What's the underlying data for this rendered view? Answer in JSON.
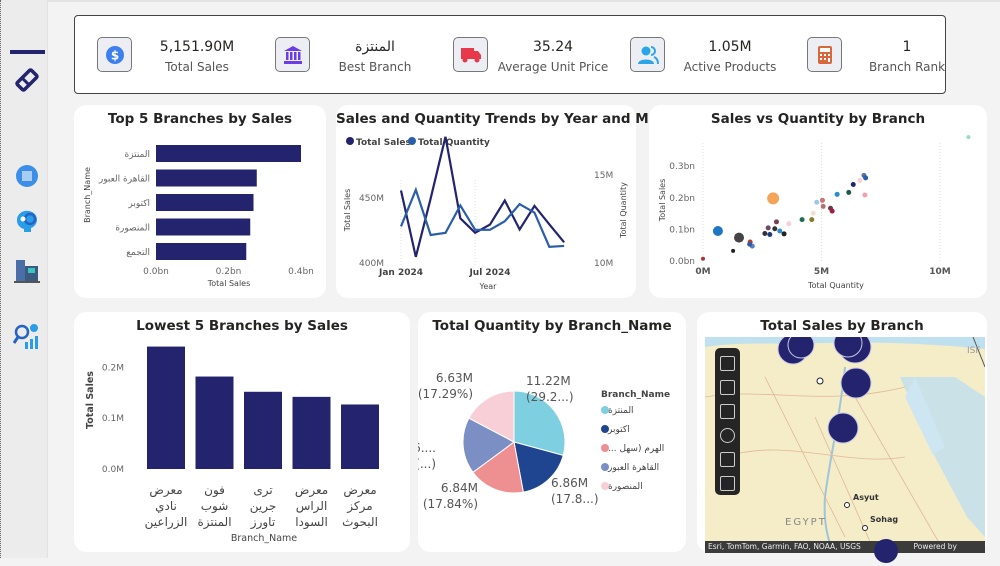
{
  "sidebar": {
    "items": [
      {
        "icon": "eraser-icon"
      },
      {
        "icon": "globe-building-icon"
      },
      {
        "icon": "head-gear-icon"
      },
      {
        "icon": "buildings-icon"
      },
      {
        "icon": "analytics-search-icon"
      }
    ]
  },
  "kpis": [
    {
      "value": "5,151.90M",
      "label": "Total Sales",
      "icon": "dollar-icon",
      "color": "#3d7ff0"
    },
    {
      "value": "المنتزة",
      "label": "Best Branch",
      "icon": "bank-icon",
      "color": "#6a3de8"
    },
    {
      "value": "35.24",
      "label": "Average Unit Price",
      "icon": "truck-icon",
      "color": "#e8394a"
    },
    {
      "value": "1.05M",
      "label": "Active Products",
      "icon": "users-icon",
      "color": "#2aa6e8"
    },
    {
      "value": "1",
      "label": "Branch Rank",
      "icon": "calculator-icon",
      "color": "#d9673c"
    }
  ],
  "chart_data": [
    {
      "id": "top5",
      "type": "bar",
      "orientation": "horizontal",
      "title": "Top 5 Branches by Sales",
      "categories": [
        "المنتزة",
        "القاهرة العبور",
        "اكتوبر",
        "المنصورة",
        "التجمع"
      ],
      "values": [
        0.4,
        0.278,
        0.269,
        0.26,
        0.249
      ],
      "xlabel": "Total Sales",
      "ylabel": "Branch_Name",
      "xlim": [
        0,
        0.4
      ],
      "xticks": [
        "0.0bn",
        "0.2bn",
        "0.4bn"
      ],
      "color": "#23246d"
    },
    {
      "id": "trend",
      "type": "line",
      "title": "Sales and Quantity Trends by Year and Month",
      "x": [
        "2024-01",
        "2024-02",
        "2024-03",
        "2024-04",
        "2024-05",
        "2024-06",
        "2024-07",
        "2024-08",
        "2024-09",
        "2024-10",
        "2024-11",
        "2024-12"
      ],
      "xticks": [
        "Jan 2024",
        "Jul 2024"
      ],
      "xlabel": "Year",
      "ylabel": "Total Sales",
      "y2label": "Total Quantity",
      "yticks": [
        "400M",
        "450M"
      ],
      "y2ticks": [
        "10M",
        "15M"
      ],
      "ylim": [
        400,
        470
      ],
      "y2lim": [
        10,
        16.3
      ],
      "series": [
        {
          "name": "Total Sales",
          "axis": "left",
          "color": "#23246d",
          "values": [
            444.9,
            403.8,
            440,
            478.2,
            427.7,
            418.7,
            423.8,
            438.7,
            420.8,
            435.4,
            424,
            412.8
          ]
        },
        {
          "name": "Total Quantity",
          "axis": "right",
          "color": "#2a5ea8",
          "values": [
            12.04,
            14.08,
            11.56,
            11.68,
            13.21,
            11.85,
            11.85,
            12.33,
            13.28,
            12.81,
            10.9,
            10.95
          ]
        }
      ]
    },
    {
      "id": "scatter",
      "type": "scatter",
      "title": "Sales vs Quantity by Branch",
      "xlabel": "Total Quantity",
      "ylabel": "Total Sales",
      "xticks": [
        "0M",
        "5M",
        "10M"
      ],
      "yticks": [
        "0.0bn",
        "0.1bn",
        "0.2bn",
        "0.3bn"
      ],
      "xlim": [
        0,
        11
      ],
      "ylim": [
        0,
        0.39
      ],
      "points": [
        [
          0.63,
          0.095,
          "#1f77c4",
          5
        ],
        [
          2.96,
          0.198,
          "#f5a55a",
          6
        ],
        [
          1.52,
          0.074,
          "#444444",
          5
        ],
        [
          1.27,
          0.032,
          "#222222",
          2
        ],
        [
          0.0,
          0.007,
          "#b33333",
          2
        ],
        [
          1.99,
          0.06,
          "#c0392b",
          2.5
        ],
        [
          2.08,
          0.047,
          "#5b7fc4",
          2.5
        ],
        [
          1.97,
          0.053,
          "#2a5ea8",
          2.5
        ],
        [
          2.61,
          0.087,
          "#333333",
          2.5
        ],
        [
          2.75,
          0.105,
          "#6a4a6a",
          2.5
        ],
        [
          2.82,
          0.084,
          "#1f3a7a",
          2.5
        ],
        [
          3.03,
          0.102,
          "#333333",
          2.5
        ],
        [
          3.1,
          0.124,
          "#7a4050",
          2.5
        ],
        [
          3.24,
          0.095,
          "#2a8ad0",
          2.5
        ],
        [
          3.42,
          0.086,
          "#222222",
          2.5
        ],
        [
          3.62,
          0.118,
          "#f8cfd7",
          2.5
        ],
        [
          4.18,
          0.131,
          "#1f6a5a",
          2.5
        ],
        [
          4.59,
          0.131,
          "#8a7a2a",
          2.5
        ],
        [
          4.65,
          0.151,
          "#f0e0d0",
          2.5
        ],
        [
          4.8,
          0.186,
          "#9ac8e8",
          2.5
        ],
        [
          5.04,
          0.192,
          "#d07070",
          2.5
        ],
        [
          5.07,
          0.173,
          "#b07070",
          2.5
        ],
        [
          5.38,
          0.167,
          "#6a3a4a",
          2.5
        ],
        [
          5.45,
          0.158,
          "#a02040",
          2.5
        ],
        [
          5.66,
          0.211,
          "#2a8ad0",
          2.5
        ],
        [
          6.15,
          0.217,
          "#1f5a4a",
          2.5
        ],
        [
          6.34,
          0.242,
          "#23246d",
          2.5
        ],
        [
          6.62,
          0.255,
          "#f8cfd7",
          2.5
        ],
        [
          6.79,
          0.271,
          "#5b6fa4",
          2.5
        ],
        [
          6.86,
          0.263,
          "#2a5ea8",
          2.5
        ],
        [
          6.83,
          0.209,
          "#f0a0b0",
          2.5
        ],
        [
          11.2,
          0.392,
          "#9ad8c8",
          2
        ]
      ]
    },
    {
      "id": "lowest5",
      "type": "bar",
      "orientation": "vertical",
      "title": "Lowest 5 Branches by Sales",
      "categories": [
        [
          "معرض",
          "نادي",
          "الزراعين"
        ],
        [
          "فون",
          "شوب",
          "المنتزة"
        ],
        [
          "ترى",
          "جرين",
          "تاورز"
        ],
        [
          "معرض",
          "الراس",
          "السودا"
        ],
        [
          "معرض",
          "مركز",
          "البحوث"
        ]
      ],
      "values": [
        0.241,
        0.182,
        0.152,
        0.142,
        0.127
      ],
      "xlabel": "Branch_Name",
      "ylabel": "Total Sales",
      "ylim": [
        0,
        0.25
      ],
      "yticks": [
        "0.0M",
        "0.1M",
        "0.2M"
      ],
      "color": "#23246d"
    },
    {
      "id": "pie",
      "type": "pie",
      "title": "Total Quantity by Branch_Name",
      "legend_title": "Branch_Name",
      "legend": "right",
      "slices": [
        {
          "name": "المنتزة",
          "value": 11.22,
          "pct": 29.2,
          "label": "11.22M",
          "plabel": "(29.2...)",
          "color": "#7ecfe0"
        },
        {
          "name": "اكتوبر",
          "value": 6.86,
          "pct": 17.8,
          "label": "6.86M",
          "plabel": "(17.8...)",
          "color": "#1f4591"
        },
        {
          "name": "... الهرم (سهل",
          "value": 6.84,
          "pct": 17.84,
          "label": "6.84M",
          "plabel": "(17.84%)",
          "color": "#ee8f92"
        },
        {
          "name": "القاهرة العبور",
          "value": 6.86,
          "pct": 17.87,
          "label": "6....",
          "plabel": "(...)",
          "color": "#7b8fc4"
        },
        {
          "name": "المنصورة",
          "value": 6.63,
          "pct": 17.29,
          "label": "6.63M",
          "plabel": "(17.29%)",
          "color": "#f8cfd7"
        }
      ]
    }
  ],
  "map": {
    "title": "Total Sales by Branch",
    "labels": {
      "country": "EGYPT",
      "city1": "Asyut",
      "city2": "Sohag",
      "edge": "ISF"
    },
    "attribution": "Esri, TomTom, Garmin, FAO, NOAA, USGS",
    "powered": "Powered by",
    "tools": [
      "layers-icon",
      "grid-icon",
      "select-box-icon",
      "search-icon",
      "bars-icon",
      "person-icon"
    ],
    "bubble_color": "#23246d"
  }
}
